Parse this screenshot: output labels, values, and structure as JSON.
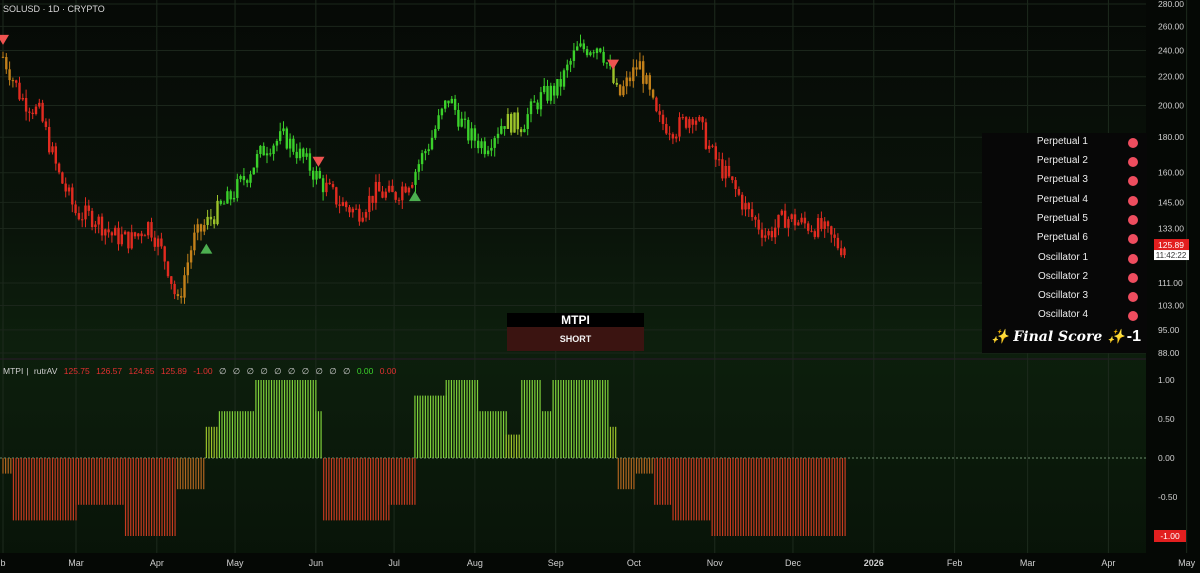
{
  "header": {
    "symbol_line": "SOLUSD · 1D · CRYPTO",
    "indicator_line": [
      "MTPI",
      "rutrAV",
      "125.75",
      "126.57",
      "124.65",
      "125.89",
      "-1.00",
      "∅",
      "∅",
      "∅",
      "∅",
      "∅",
      "∅",
      "∅",
      "∅",
      "∅",
      "∅",
      "0.00",
      "0.00"
    ]
  },
  "price_badge": {
    "price": "125.89",
    "countdown": "11:42:22"
  },
  "score_badge": {
    "value": "-1.00"
  },
  "panel": {
    "rows": [
      {
        "label": "Perpetual 1"
      },
      {
        "label": "Perpetual 2"
      },
      {
        "label": "Perpetual 3"
      },
      {
        "label": "Perpetual 4"
      },
      {
        "label": "Perpetual 5"
      },
      {
        "label": "Perpetual 6"
      },
      {
        "label": "Oscillator 1"
      },
      {
        "label": "Oscillator 2"
      },
      {
        "label": "Oscillator 3"
      },
      {
        "label": "Oscillator 4"
      }
    ],
    "final_label": "✨ Final Score ✨",
    "final_value": "-1",
    "dot_color": "#ef4d5f"
  },
  "mtpi_box": {
    "title": "MTPI",
    "signal": "SHORT"
  },
  "colors": {
    "bull": "#3bd12b",
    "bear": "#e12b20",
    "neutral": "#c2801a",
    "long_marker": "#4caf50",
    "short_marker": "#ef5350"
  },
  "chart_data": [
    {
      "type": "candlestick",
      "title": "SOLUSD · 1D · CRYPTO",
      "y_scale": "log",
      "y_ticks": [
        280,
        260,
        240,
        220,
        200,
        180,
        160,
        145,
        133,
        111,
        103,
        95,
        88
      ],
      "ylim": [
        88,
        280
      ],
      "x_ticks": [
        "b",
        "Mar",
        "Apr",
        "May",
        "Jun",
        "Jul",
        "Aug",
        "Sep",
        "Oct",
        "Nov",
        "Dec",
        "2026",
        "Feb",
        "Mar",
        "Apr",
        "May"
      ],
      "x_tick_dates": [
        "2025-02-01",
        "2025-03-01",
        "2025-04-01",
        "2025-05-01",
        "2025-06-01",
        "2025-07-01",
        "2025-08-01",
        "2025-09-01",
        "2025-10-01",
        "2025-11-01",
        "2025-12-01",
        "2026-01-01",
        "2026-02-01",
        "2026-03-01",
        "2026-04-01",
        "2026-05-01"
      ],
      "series": [
        {
          "x": [
            "2025-02-01",
            "2025-02-08",
            "2025-02-15",
            "2025-02-22",
            "2025-03-01",
            "2025-03-08",
            "2025-03-15",
            "2025-03-22",
            "2025-03-29",
            "2025-04-05",
            "2025-04-09",
            "2025-04-15",
            "2025-04-22",
            "2025-04-29",
            "2025-05-06",
            "2025-05-13",
            "2025-05-20",
            "2025-05-27",
            "2025-06-03",
            "2025-06-10",
            "2025-06-17",
            "2025-06-24",
            "2025-07-01",
            "2025-07-08",
            "2025-07-15",
            "2025-07-22",
            "2025-07-29",
            "2025-08-05",
            "2025-08-12",
            "2025-08-19",
            "2025-08-26",
            "2025-09-02",
            "2025-09-09",
            "2025-09-18",
            "2025-09-25",
            "2025-10-03",
            "2025-10-10",
            "2025-10-17",
            "2025-10-24",
            "2025-10-31",
            "2025-11-07",
            "2025-11-14",
            "2025-11-21",
            "2025-11-28",
            "2025-12-05",
            "2025-12-12",
            "2025-12-19",
            "2025-12-21"
          ],
          "y": [
            235,
            205,
            195,
            160,
            140,
            138,
            130,
            128,
            135,
            118,
            103,
            128,
            138,
            147,
            160,
            175,
            180,
            168,
            155,
            145,
            140,
            150,
            148,
            158,
            178,
            205,
            182,
            175,
            190,
            188,
            205,
            212,
            240,
            245,
            205,
            230,
            190,
            185,
            195,
            170,
            155,
            140,
            130,
            138,
            135,
            133,
            125,
            125.89
          ]
        }
      ],
      "markers": [
        {
          "x": "2025-02-01",
          "dir": "short"
        },
        {
          "x": "2025-04-20",
          "dir": "long"
        },
        {
          "x": "2025-06-02",
          "dir": "short"
        },
        {
          "x": "2025-07-09",
          "dir": "long"
        },
        {
          "x": "2025-09-23",
          "dir": "short"
        }
      ],
      "last_price": 125.89
    },
    {
      "type": "bar",
      "title": "MTPI",
      "ylim": [
        -1,
        1
      ],
      "y_ticks": [
        1.0,
        0.5,
        0.0,
        -0.5,
        -1.0
      ],
      "y_tick_labels": [
        "1.00",
        "0.50",
        "0.00",
        "-0.50",
        "-1.00"
      ],
      "segments": [
        {
          "from": "2025-02-01",
          "to": "2025-02-04",
          "value": -0.2
        },
        {
          "from": "2025-02-05",
          "to": "2025-02-28",
          "value": -0.8
        },
        {
          "from": "2025-03-01",
          "to": "2025-03-19",
          "value": -0.6
        },
        {
          "from": "2025-03-20",
          "to": "2025-04-08",
          "value": -1.0
        },
        {
          "from": "2025-04-09",
          "to": "2025-04-19",
          "value": -0.4
        },
        {
          "from": "2025-04-20",
          "to": "2025-04-24",
          "value": 0.4
        },
        {
          "from": "2025-04-25",
          "to": "2025-05-08",
          "value": 0.6
        },
        {
          "from": "2025-05-09",
          "to": "2025-05-31",
          "value": 1.0
        },
        {
          "from": "2025-06-01",
          "to": "2025-06-03",
          "value": 0.6
        },
        {
          "from": "2025-06-04",
          "to": "2025-06-28",
          "value": -0.8
        },
        {
          "from": "2025-06-29",
          "to": "2025-07-08",
          "value": -0.6
        },
        {
          "from": "2025-07-09",
          "to": "2025-07-20",
          "value": 0.8
        },
        {
          "from": "2025-07-21",
          "to": "2025-08-01",
          "value": 1.0
        },
        {
          "from": "2025-08-02",
          "to": "2025-08-12",
          "value": 0.6
        },
        {
          "from": "2025-08-13",
          "to": "2025-08-18",
          "value": 0.3
        },
        {
          "from": "2025-08-19",
          "to": "2025-08-26",
          "value": 1.0
        },
        {
          "from": "2025-08-27",
          "to": "2025-08-30",
          "value": 0.6
        },
        {
          "from": "2025-08-31",
          "to": "2025-09-21",
          "value": 1.0
        },
        {
          "from": "2025-09-22",
          "to": "2025-09-24",
          "value": 0.4
        },
        {
          "from": "2025-09-25",
          "to": "2025-10-01",
          "value": -0.4
        },
        {
          "from": "2025-10-02",
          "to": "2025-10-08",
          "value": -0.2
        },
        {
          "from": "2025-10-09",
          "to": "2025-10-15",
          "value": -0.6
        },
        {
          "from": "2025-10-16",
          "to": "2025-10-30",
          "value": -0.8
        },
        {
          "from": "2025-10-31",
          "to": "2025-12-21",
          "value": -1.0
        }
      ]
    }
  ]
}
